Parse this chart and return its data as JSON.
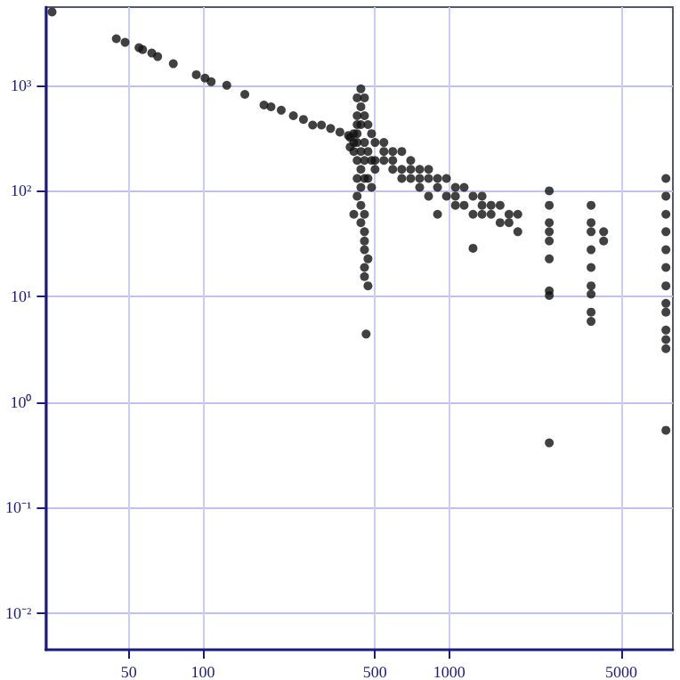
{
  "chart_data": {
    "type": "scatter",
    "log": "xy",
    "grid": true,
    "marker": "circle",
    "xlim": [
      23,
      8100
    ],
    "ylim": [
      0.0045,
      5500
    ],
    "xticks": [
      50,
      100,
      500,
      1000,
      5000
    ],
    "yticks": [
      {
        "value": 0.01,
        "label": "10⁻²"
      },
      {
        "value": 0.1,
        "label": "10⁻¹"
      },
      {
        "value": 1,
        "label": "10⁰"
      },
      {
        "value": 10,
        "label": "10¹"
      },
      {
        "value": 100,
        "label": "10²"
      },
      {
        "value": 1000,
        "label": "10³"
      }
    ],
    "series": [
      {
        "color": "#111111",
        "x": [
          24.4,
          44.5,
          48.3,
          55,
          56.9,
          62,
          65.5,
          75.8,
          94,
          102,
          108,
          125,
          148,
          177,
          189,
          208,
          233,
          256,
          279,
          303,
          330,
          360,
          390,
          396,
          396,
          410,
          410,
          410,
          410,
          423,
          423,
          423,
          423,
          423,
          423,
          423,
          423,
          438,
          438,
          438,
          438,
          438,
          438,
          438,
          438,
          453,
          453,
          453,
          453,
          453,
          453,
          453,
          453,
          453,
          453,
          453,
          468,
          468,
          468,
          468,
          468,
          460,
          484,
          484,
          484,
          500,
          500,
          500,
          543,
          543,
          543,
          590,
          590,
          590,
          642,
          642,
          642,
          698,
          698,
          698,
          759,
          759,
          759,
          825,
          825,
          825,
          897,
          897,
          897,
          975,
          975,
          1060,
          1060,
          1060,
          1150,
          1150,
          1250,
          1250,
          1250,
          1360,
          1360,
          1360,
          1480,
          1480,
          1610,
          1610,
          1750,
          1750,
          1900,
          1900,
          2550,
          2550,
          2550,
          2550,
          2550,
          2550,
          2550,
          2550,
          2550,
          3770,
          3770,
          3770,
          3770,
          3770,
          3770,
          3770,
          3770,
          3770,
          4240,
          4240,
          7590,
          7590,
          7590,
          7590,
          7590,
          7590,
          7590,
          7590,
          7590,
          7590,
          7590,
          7590,
          7590
        ],
        "values": [
          4950,
          2760,
          2550,
          2270,
          2180,
          2020,
          1870,
          1600,
          1260,
          1170,
          1080,
          1000,
          820,
          650,
          625,
          580,
          515,
          475,
          420,
          420,
          390,
          360,
          335,
          320,
          260,
          348,
          287,
          236,
          60,
          760,
          515,
          424,
          348,
          287,
          194,
          131,
          89,
          925,
          626,
          424,
          236,
          160,
          108,
          73,
          50,
          760,
          515,
          287,
          194,
          131,
          60,
          41,
          33.5,
          27.7,
          18.8,
          15.4,
          424,
          236,
          131,
          22.7,
          12.6,
          4.4,
          348,
          194,
          108,
          287,
          194,
          160,
          287,
          236,
          194,
          236,
          194,
          160,
          236,
          160,
          131,
          194,
          160,
          131,
          160,
          131,
          108,
          160,
          131,
          89,
          131,
          108,
          60,
          131,
          89,
          108,
          89,
          73,
          108,
          73,
          89,
          60,
          28.6,
          89,
          73,
          60,
          73,
          60,
          73,
          50,
          60,
          50,
          60,
          41,
          100,
          73,
          50,
          41,
          33.5,
          22.7,
          11.3,
          10.2,
          0.41,
          73,
          50,
          41,
          27.7,
          18.8,
          12.6,
          10.5,
          7.1,
          5.8,
          41,
          33.5,
          131,
          89,
          60,
          41,
          27.7,
          18.8,
          12.6,
          8.6,
          7.1,
          4.8,
          3.9,
          3.2,
          0.54
        ]
      }
    ]
  }
}
